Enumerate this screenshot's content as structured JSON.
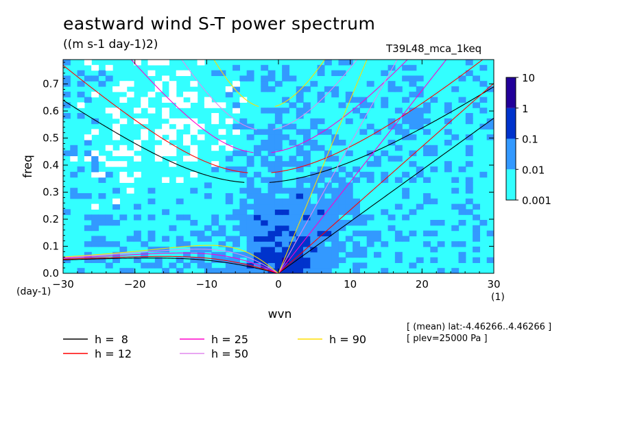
{
  "header": {
    "title": "eastward wind S-T power spectrum",
    "units": "((m s-1 day-1)2)",
    "experiment": "T39L48_mca_1keq"
  },
  "notes": {
    "mean_lat": "[ (mean) lat:-4.46266..4.46266 ]",
    "plev": "[ plev=25000 Pa ]"
  },
  "colors": {
    "background": "#ffffff",
    "levels": [
      "#ffffff",
      "#33ffff",
      "#3399ff",
      "#0033cc",
      "#220099",
      "#4b0a8c"
    ]
  },
  "chart_data": {
    "type": "heatmap",
    "title": "eastward wind S-T power spectrum",
    "subtitle": "((m s-1 day-1)2)",
    "xlabel": "wvn",
    "ylabel": "freq",
    "x_unit": "(1)",
    "y_unit": "(day-1)",
    "xlim": [
      -30,
      30
    ],
    "ylim": [
      0,
      0.79
    ],
    "x_ticks": [
      -30,
      -20,
      -10,
      0,
      10,
      20,
      30
    ],
    "y_ticks": [
      0.0,
      0.1,
      0.2,
      0.3,
      0.4,
      0.5,
      0.6,
      0.7
    ],
    "y_tick_labels": [
      "0.0",
      "0.1",
      "0.2",
      "0.3",
      "0.4",
      "0.5",
      "0.6",
      "0.7"
    ],
    "colorbar": {
      "levels": [
        0.001,
        0.01,
        0.1,
        1,
        10
      ],
      "labels": [
        "0.001",
        "0.01",
        "0.1",
        "1",
        "10"
      ],
      "colors": [
        "#33ffff",
        "#3399ff",
        "#0033cc",
        "#220099"
      ]
    },
    "dispersion_curves": [
      {
        "label": "h =  8",
        "h": 8,
        "color": "#000000"
      },
      {
        "label": "h = 12",
        "h": 12,
        "color": "#ff0000"
      },
      {
        "label": "h = 25",
        "h": 25,
        "color": "#ff00cc"
      },
      {
        "label": "h = 50",
        "h": 50,
        "color": "#e088ee"
      },
      {
        "label": "h = 90",
        "h": 90,
        "color": "#ffdd00"
      }
    ],
    "grid": false,
    "legend_position": "bottom"
  }
}
